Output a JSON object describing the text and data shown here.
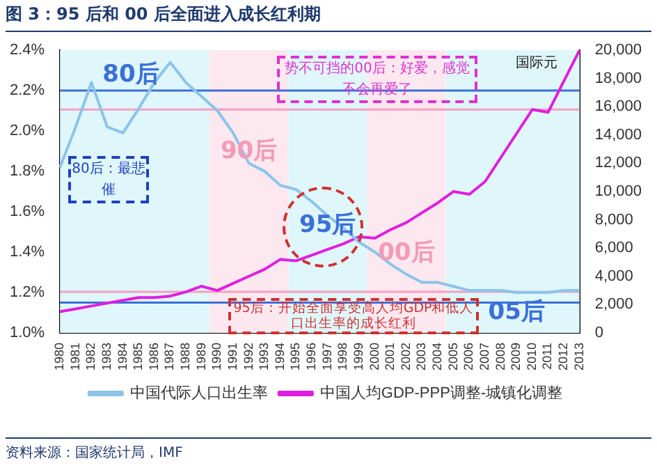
{
  "chart_data": {
    "type": "line",
    "title": "图 3：95 后和 00 后全面进入成长红利期",
    "y2label": "国际元",
    "categories": [
      "1980",
      "1981",
      "1982",
      "1983",
      "1984",
      "1985",
      "1986",
      "1987",
      "1988",
      "1989",
      "1990",
      "1991",
      "1992",
      "1993",
      "1994",
      "1995",
      "1996",
      "1997",
      "1998",
      "1999",
      "2000",
      "2001",
      "2002",
      "2003",
      "2004",
      "2005",
      "2006",
      "2007",
      "2008",
      "2009",
      "2010",
      "2011",
      "2012",
      "2013"
    ],
    "series": [
      {
        "name": "中国代际人口出生率",
        "color": "#8cc4ea",
        "values": [
          1.82,
          2.02,
          2.24,
          2.02,
          1.99,
          2.11,
          2.24,
          2.34,
          2.24,
          2.17,
          2.1,
          1.99,
          1.84,
          1.8,
          1.73,
          1.71,
          1.65,
          1.58,
          1.52,
          1.45,
          1.4,
          1.34,
          1.29,
          1.25,
          1.25,
          1.23,
          1.21,
          1.21,
          1.21,
          1.2,
          1.2,
          1.2,
          1.21,
          1.21
        ]
      },
      {
        "name": "中国人均GDP-PPP调整-城镇化调整",
        "color": "#e01ee0",
        "axis": "y2",
        "values": [
          1500,
          1700,
          1900,
          2100,
          2300,
          2500,
          2500,
          2600,
          2900,
          3300,
          3000,
          3500,
          4000,
          4500,
          5200,
          5100,
          5500,
          5900,
          6300,
          6800,
          6700,
          7300,
          7800,
          8500,
          9200,
          10000,
          9800,
          10700,
          12400,
          14100,
          15800,
          15600,
          17800,
          20000
        ]
      }
    ],
    "ylim": [
      1.0,
      2.4
    ],
    "yticks": [
      {
        "value": 1.0,
        "label": "1.0%"
      },
      {
        "value": 1.2,
        "label": "1.2%"
      },
      {
        "value": 1.4,
        "label": "1.4%"
      },
      {
        "value": 1.6,
        "label": "1.6%"
      },
      {
        "value": 1.8,
        "label": "1.8%"
      },
      {
        "value": 2.0,
        "label": "2.0%"
      },
      {
        "value": 2.2,
        "label": "2.2%"
      },
      {
        "value": 2.4,
        "label": "2.4%"
      }
    ],
    "y2lim": [
      0,
      20000
    ],
    "y2ticks": [
      {
        "value": 0,
        "label": "0"
      },
      {
        "value": 2000,
        "label": "2,000"
      },
      {
        "value": 4000,
        "label": "4,000"
      },
      {
        "value": 6000,
        "label": "6,000"
      },
      {
        "value": 8000,
        "label": "8,000"
      },
      {
        "value": 10000,
        "label": "10,000"
      },
      {
        "value": 12000,
        "label": "12,000"
      },
      {
        "value": 14000,
        "label": "14,000"
      },
      {
        "value": 16000,
        "label": "16,000"
      },
      {
        "value": 18000,
        "label": "18,000"
      },
      {
        "value": 20000,
        "label": "20,000"
      }
    ],
    "bands": [
      {
        "axis": "x",
        "from": "1980",
        "to": "1989",
        "label": "80后",
        "color": "#dff7fa"
      },
      {
        "axis": "x",
        "from": "1990",
        "to": "1994",
        "label": "90后",
        "color": "#fde8f0"
      },
      {
        "axis": "x",
        "from": "1995",
        "to": "1999",
        "label": "95后",
        "color": "#dff7fa"
      },
      {
        "axis": "x",
        "from": "2000",
        "to": "2004",
        "label": "00后",
        "color": "#fde8f0"
      },
      {
        "axis": "x",
        "from": "2005",
        "to": "2013",
        "label": "05后",
        "color": "#dff7fa"
      }
    ],
    "ref_lines": [
      {
        "axis": "y",
        "value": 2.2,
        "color": "#3b6fd8"
      },
      {
        "axis": "y",
        "value": 1.15,
        "color": "#3b6fd8"
      },
      {
        "axis": "y2",
        "value": 15800,
        "color": "#f4a0c0"
      },
      {
        "axis": "y2",
        "value": 2900,
        "color": "#f4a0c0"
      }
    ],
    "annotations": [
      "势不可挡的00后：好爱，感觉不会再爱了",
      "80后：最悲催",
      "95后：开始全面享受高人均GDP和低人口出生率的成长红利",
      "资料来源：国家统计局，IMF"
    ],
    "legend": "bottom",
    "grid": false,
    "marker": "none",
    "line_style": "solid"
  }
}
